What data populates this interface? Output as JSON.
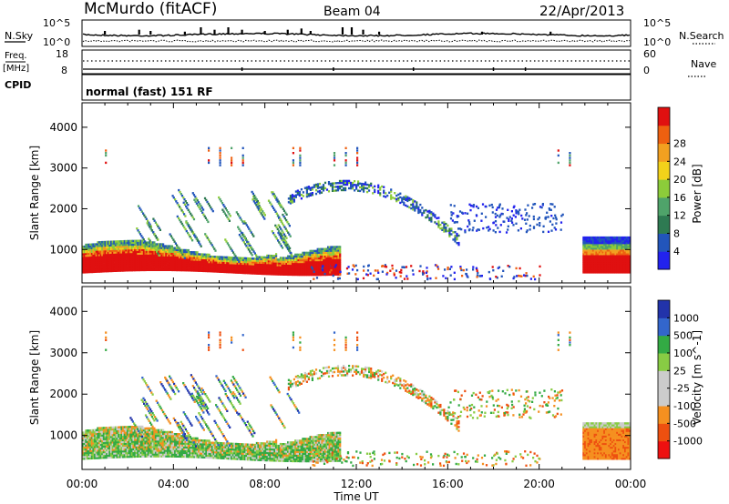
{
  "header": {
    "station": "McMurdo (fitACF)",
    "beam": "Beam 04",
    "date": "22/Apr/2013",
    "cpid_label": "CPID",
    "cpid_value": "normal (fast) 151 RF"
  },
  "noise_panel": {
    "left_label": "N.Sky",
    "left_top": "10^5",
    "left_bottom": "10^0",
    "right_top": "10^5",
    "right_bottom": "10^0",
    "right_label": "N.Search"
  },
  "freq_panel": {
    "left_label_top": "Freq.",
    "left_label_bottom": "[MHz]",
    "left_top": "18",
    "left_bottom": "8",
    "right_top": "60",
    "right_bottom": "0",
    "right_label": "Nave"
  },
  "colors": {
    "power_scale": [
      "#2222ee",
      "#2255bb",
      "#2e7a52",
      "#4fa36a",
      "#8ccc3a",
      "#f2d21a",
      "#f2a020",
      "#ee6010",
      "#e01010"
    ],
    "velocity_scale": [
      "#ee1010",
      "#ee5010",
      "#f59020",
      "#cccccc",
      "#cccccc",
      "#88cc44",
      "#33aa44",
      "#3366cc",
      "#2233aa"
    ],
    "power_high": "#ee1a10",
    "power_mid": "#f29020",
    "power_low": "#2244cc",
    "velocity_pos": "#4f9f5f",
    "velocity_neg": "#f28a20"
  },
  "chart_data": {
    "type": "heatmap",
    "title": "McMurdo (fitACF)  Beam 04  22/Apr/2013",
    "xlabel": "Time UT",
    "x_ticks": [
      "00:00",
      "04:00",
      "08:00",
      "12:00",
      "16:00",
      "20:00",
      "00:00"
    ],
    "xlim_hours": [
      0,
      24
    ],
    "panels": [
      {
        "name": "power",
        "ylabel": "Slant Range [km]",
        "y_ticks": [
          1000,
          2000,
          3000,
          4000
        ],
        "ylim": [
          180,
          4600
        ],
        "colorbar_label": "Power [dB]",
        "colorbar_ticks": [
          4,
          8,
          12,
          16,
          20,
          24,
          28
        ]
      },
      {
        "name": "velocity",
        "ylabel": "Slant Range [km]",
        "y_ticks": [
          1000,
          2000,
          3000,
          4000
        ],
        "ylim": [
          180,
          4600
        ],
        "colorbar_label": "Velocity [m s^-1]",
        "colorbar_ticks": [
          "-1000",
          "-500",
          "-100",
          "-25",
          "25",
          "100",
          "500",
          "1000"
        ]
      }
    ],
    "scatter_regions": [
      {
        "t0": 0.0,
        "t1": 11.0,
        "r0": 400,
        "r1": 1100,
        "desc": "main band"
      },
      {
        "t0": 22.0,
        "t1": 24.0,
        "r0": 400,
        "r1": 1300,
        "desc": "late band"
      },
      {
        "t0": 9.0,
        "t1": 16.0,
        "r0": 1300,
        "r1": 2700,
        "desc": "arc"
      },
      {
        "t0": 16.0,
        "t1": 21.0,
        "r0": 1400,
        "r1": 2100,
        "desc": "patches"
      }
    ]
  }
}
